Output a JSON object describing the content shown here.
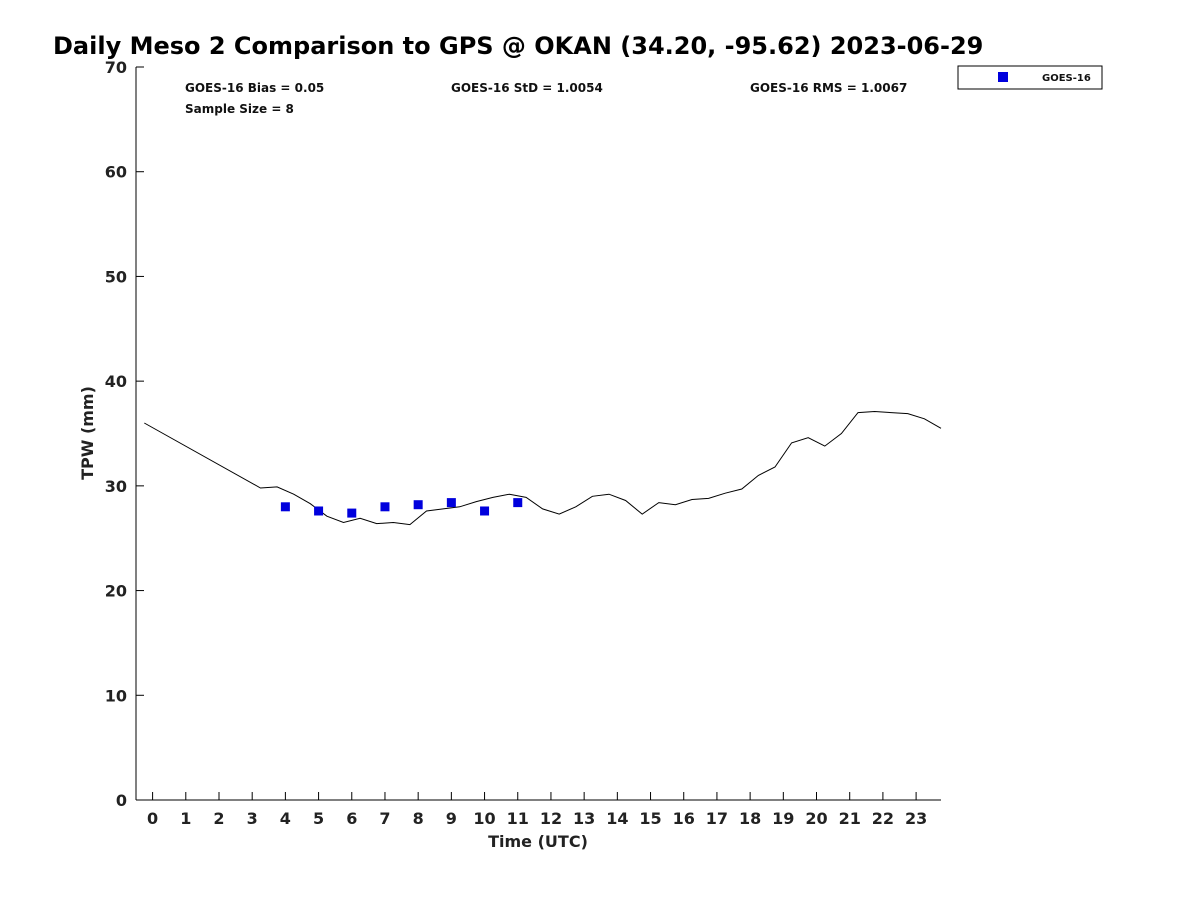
{
  "chart_data": {
    "type": "scatter",
    "title": "Daily Meso 2 Comparison to GPS @ OKAN (34.20, -95.62) 2023-06-29",
    "xlabel": "Time (UTC)",
    "ylabel": "TPW (mm)",
    "xlim": [
      -0.5,
      23.75
    ],
    "ylim": [
      0,
      70
    ],
    "x_ticks": [
      "0",
      "1",
      "2",
      "3",
      "4",
      "5",
      "6",
      "7",
      "8",
      "9",
      "10",
      "11",
      "12",
      "13",
      "14",
      "15",
      "16",
      "17",
      "18",
      "19",
      "20",
      "21",
      "22",
      "23"
    ],
    "y_ticks": [
      "0",
      "10",
      "20",
      "30",
      "40",
      "50",
      "60",
      "70"
    ],
    "grid": false,
    "legend_position": "top-right, outside plot",
    "stats": {
      "bias": "GOES-16 Bias = 0.05",
      "std": "GOES-16 StD = 1.0054",
      "rms": "GOES-16 RMS = 1.0067",
      "sample_size": "Sample Size = 8"
    },
    "series": [
      {
        "name": "GOES-16",
        "kind": "scatter",
        "color": "#0000dd",
        "marker": "square",
        "points": [
          [
            4.0,
            28.0
          ],
          [
            5.0,
            27.6
          ],
          [
            6.0,
            27.4
          ],
          [
            7.0,
            28.0
          ],
          [
            8.0,
            28.2
          ],
          [
            9.0,
            28.4
          ],
          [
            10.0,
            27.6
          ],
          [
            11.0,
            28.4
          ]
        ]
      },
      {
        "kind": "line",
        "color": "#000000",
        "points": [
          [
            -0.25,
            36.0
          ],
          [
            3.25,
            29.8
          ],
          [
            3.75,
            29.9
          ],
          [
            4.25,
            29.2
          ],
          [
            4.75,
            28.3
          ],
          [
            5.25,
            27.1
          ],
          [
            5.75,
            26.5
          ],
          [
            6.25,
            26.9
          ],
          [
            6.75,
            26.4
          ],
          [
            7.25,
            26.5
          ],
          [
            7.75,
            26.3
          ],
          [
            8.25,
            27.6
          ],
          [
            8.75,
            27.8
          ],
          [
            9.25,
            28.0
          ],
          [
            9.75,
            28.5
          ],
          [
            10.25,
            28.9
          ],
          [
            10.75,
            29.2
          ],
          [
            11.25,
            28.9
          ],
          [
            11.75,
            27.8
          ],
          [
            12.25,
            27.3
          ],
          [
            12.75,
            28.0
          ],
          [
            13.25,
            29.0
          ],
          [
            13.75,
            29.2
          ],
          [
            14.25,
            28.6
          ],
          [
            14.75,
            27.3
          ],
          [
            15.25,
            28.4
          ],
          [
            15.75,
            28.2
          ],
          [
            16.25,
            28.7
          ],
          [
            16.75,
            28.8
          ],
          [
            17.25,
            29.3
          ],
          [
            17.75,
            29.7
          ],
          [
            18.25,
            31.0
          ],
          [
            18.75,
            31.8
          ],
          [
            19.25,
            34.1
          ],
          [
            19.75,
            34.6
          ],
          [
            20.25,
            33.8
          ],
          [
            20.75,
            35.0
          ],
          [
            21.25,
            37.0
          ],
          [
            21.75,
            37.1
          ],
          [
            22.25,
            37.0
          ],
          [
            22.75,
            36.9
          ],
          [
            23.25,
            36.4
          ],
          [
            23.75,
            35.5
          ]
        ]
      }
    ]
  },
  "legend": {
    "label": "GOES-16"
  }
}
